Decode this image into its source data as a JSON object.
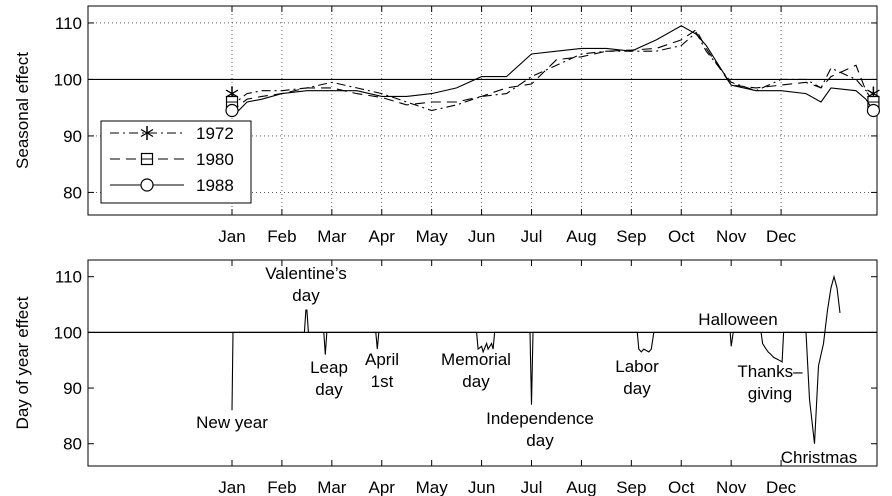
{
  "chart_data": [
    {
      "type": "line",
      "ylabel": "Seasonal effect",
      "xlabel": "",
      "xlim": [
        0,
        12.85
      ],
      "ylim": [
        76,
        113
      ],
      "yticks": [
        80,
        90,
        100,
        110
      ],
      "xtick_labels": [
        "Jan",
        "Feb",
        "Mar",
        "Apr",
        "May",
        "Jun",
        "Jul",
        "Aug",
        "Sep",
        "Oct",
        "Nov",
        "Dec"
      ],
      "grid": true,
      "legend_position": "lower-left",
      "reference_line": 100,
      "series": [
        {
          "name": "1972",
          "style": "dash-dot",
          "marker": "asterisk",
          "x": [
            0,
            0.08,
            0.3,
            0.6,
            1,
            1.5,
            2,
            2.5,
            3,
            3.5,
            4,
            4.5,
            5,
            5.5,
            6,
            6.5,
            7,
            7.5,
            8,
            8.5,
            9,
            9.3,
            9.5,
            10,
            10.5,
            11,
            11.5,
            11.8,
            12,
            12.5,
            12.7,
            12.85
          ],
          "y": [
            97.5,
            96,
            97.5,
            98,
            98,
            98.5,
            99.5,
            98.5,
            97.5,
            96,
            94.5,
            95.5,
            97,
            97.5,
            100.5,
            102.5,
            104.5,
            105,
            105,
            105,
            106,
            108.3,
            105,
            99.5,
            98,
            100,
            100,
            98.5,
            102,
            100,
            98,
            97.5
          ]
        },
        {
          "name": "1980",
          "style": "dashed",
          "marker": "square",
          "x": [
            0,
            0.08,
            0.3,
            0.6,
            1,
            1.5,
            2,
            2.5,
            3,
            3.5,
            4,
            4.5,
            5,
            5.5,
            6,
            6.5,
            7,
            7.5,
            8,
            8.5,
            9,
            9.3,
            9.5,
            10,
            10.5,
            11,
            11.5,
            11.8,
            12,
            12.5,
            12.7,
            12.85
          ],
          "y": [
            96,
            95,
            96.5,
            97,
            97.5,
            98.5,
            98.5,
            97.5,
            96.8,
            95.5,
            96,
            96,
            97,
            98.5,
            99.2,
            103.5,
            104,
            105,
            105.2,
            105.5,
            107,
            108.8,
            105.5,
            99,
            98.5,
            99,
            99.5,
            98.5,
            100.5,
            102.5,
            98,
            96
          ]
        },
        {
          "name": "1988",
          "style": "solid",
          "marker": "circle",
          "x": [
            0,
            0.08,
            0.3,
            0.6,
            1,
            1.5,
            2,
            2.5,
            3,
            3.5,
            4,
            4.5,
            5,
            5.5,
            6,
            6.5,
            7,
            7.5,
            8,
            8.5,
            9,
            9.3,
            9.5,
            10,
            10.5,
            11,
            11.5,
            11.8,
            12,
            12.5,
            12.7,
            12.85
          ],
          "y": [
            94.5,
            94,
            96,
            96.5,
            97.5,
            98,
            98,
            98,
            97,
            97,
            97.5,
            98.5,
            100.5,
            100.5,
            104.5,
            105,
            105.5,
            105.5,
            105,
            107,
            109.5,
            108,
            106,
            99,
            98,
            98,
            97.5,
            96,
            98.5,
            98,
            96.5,
            94.5
          ]
        }
      ]
    },
    {
      "type": "line",
      "ylabel": "Day of year effect",
      "xlabel": "",
      "xlim": [
        0,
        12.85
      ],
      "ylim": [
        76,
        113
      ],
      "yticks": [
        80,
        90,
        100,
        110
      ],
      "xtick_labels": [
        "Jan",
        "Feb",
        "Mar",
        "Apr",
        "May",
        "Jun",
        "Jul",
        "Aug",
        "Sep",
        "Oct",
        "Nov",
        "Dec"
      ],
      "grid": false,
      "reference_line": 100,
      "series": [
        {
          "name": "",
          "x": [
            0,
            0.02,
            0.04,
            0.06,
            1.45,
            1.48,
            1.5,
            1.53,
            1.56,
            1.84,
            1.87,
            1.9,
            2.88,
            2.91,
            2.94,
            4.9,
            4.93,
            5,
            5.03,
            5.1,
            5.13,
            5.2,
            5.23,
            5.26,
            5.97,
            6,
            6.03,
            6.08,
            6.12,
            8.12,
            8.15,
            8.2,
            8.25,
            8.35,
            8.4,
            8.45,
            9.98,
            10.0,
            10.04,
            10.6,
            10.63,
            10.7,
            10.74,
            10.8,
            10.85,
            10.92,
            10.96,
            11.02,
            11.05,
            11.5,
            11.57,
            11.67,
            11.75,
            11.85,
            11.93,
            12.0,
            12.06,
            12.12,
            12.18
          ],
          "y": [
            86,
            100,
            100,
            100,
            100,
            104,
            104,
            100,
            100,
            100,
            96,
            100,
            100,
            97,
            100,
            100,
            97,
            97.5,
            96.5,
            98,
            97,
            98,
            97,
            100,
            100,
            87,
            100,
            100,
            100,
            100,
            97,
            96.5,
            97,
            96.5,
            97,
            100,
            100,
            97.5,
            100,
            100,
            98,
            97,
            96.5,
            96,
            95.5,
            95.2,
            95,
            94.7,
            100,
            100,
            88,
            80,
            94,
            98,
            104,
            108,
            110,
            108,
            103.5
          ]
        }
      ],
      "annotations": [
        {
          "lines": [
            "New year"
          ]
        },
        {
          "lines": [
            "Valentine’s",
            "day"
          ]
        },
        {
          "lines": [
            "Leap",
            "day"
          ]
        },
        {
          "lines": [
            "April",
            "1st"
          ]
        },
        {
          "lines": [
            "Memorial",
            "day"
          ]
        },
        {
          "lines": [
            "Independence",
            "day"
          ]
        },
        {
          "lines": [
            "Labor",
            "day"
          ]
        },
        {
          "lines": [
            "Halloween"
          ]
        },
        {
          "lines": [
            "Thanks–",
            "giving"
          ]
        },
        {
          "lines": [
            "Christmas"
          ]
        }
      ]
    }
  ]
}
